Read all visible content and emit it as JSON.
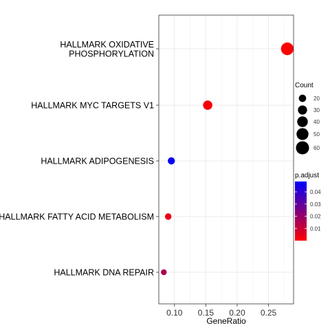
{
  "chart_data": {
    "type": "scatter",
    "title": "",
    "xlabel": "GeneRatio",
    "ylabel": "",
    "xlim": [
      0.075,
      0.29
    ],
    "grid": true,
    "x_ticks": [
      0.1,
      0.15,
      0.2,
      0.25
    ],
    "x_tick_labels": [
      "0.10",
      "0.15",
      "0.20",
      "0.25"
    ],
    "categories": [
      [
        "HALLMARK OXIDATIVE",
        "PHOSPHORYLATION"
      ],
      [
        "HALLMARK MYC TARGETS V1"
      ],
      [
        "HALLMARK ADIPOGENESIS"
      ],
      [
        "HALLMARK FATTY ACID METABOLISM"
      ],
      [
        "HALLMARK DNA REPAIR"
      ]
    ],
    "points": [
      {
        "gene_ratio": 0.28,
        "count": 56,
        "p_adjust": 0.0001
      },
      {
        "gene_ratio": 0.153,
        "count": 31,
        "p_adjust": 0.0015
      },
      {
        "gene_ratio": 0.095,
        "count": 19,
        "p_adjust": 0.047
      },
      {
        "gene_ratio": 0.09,
        "count": 16,
        "p_adjust": 0.004
      },
      {
        "gene_ratio": 0.083,
        "count": 13,
        "p_adjust": 0.016
      }
    ],
    "size_legend": {
      "title": "Count",
      "values": [
        20,
        30,
        40,
        50,
        60
      ],
      "labels": [
        "20",
        "30",
        "40",
        "50",
        "60"
      ]
    },
    "color_legend": {
      "title": "p.adjust",
      "min": 0.0,
      "max": 0.0485,
      "ticks": [
        0.01,
        0.02,
        0.03,
        0.04
      ],
      "tick_labels": [
        "0.01",
        "0.02",
        "0.03",
        "0.04"
      ],
      "low_color": "#FF0000",
      "high_color": "#0000FF"
    },
    "legend_position": "right"
  }
}
